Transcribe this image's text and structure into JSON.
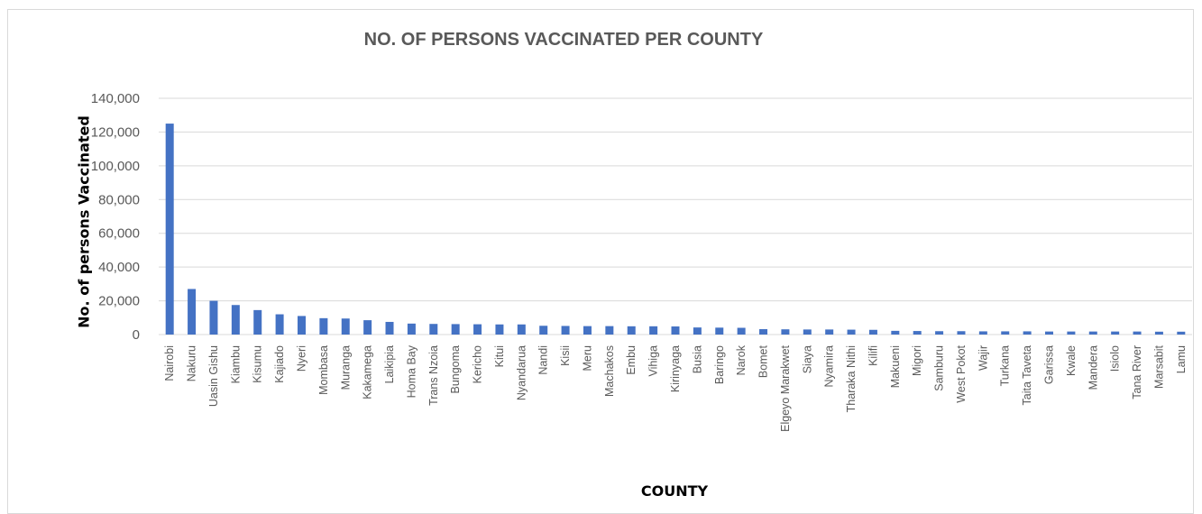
{
  "chart_data": {
    "type": "bar",
    "title": "NO. OF PERSONS VACCINATED PER COUNTY",
    "xlabel": "COUNTY",
    "ylabel": "No. of persons Vaccinated",
    "ylim": [
      0,
      140000
    ],
    "yticks": [
      "0",
      "20,000",
      "40,000",
      "60,000",
      "80,000",
      "100,000",
      "120,000",
      "140,000"
    ],
    "grid": true,
    "bar_color": "#4472c4",
    "categories": [
      "Nairobi",
      "Nakuru",
      "Uasin Gishu",
      "Kiambu",
      "Kisumu",
      "Kajiado",
      "Nyeri",
      "Mombasa",
      "Muranga",
      "Kakamega",
      "Laikipia",
      "Homa Bay",
      "Trans Nzoia",
      "Bungoma",
      "Kericho",
      "Kitui",
      "Nyandarua",
      "Nandi",
      "Kisii",
      "Meru",
      "Machakos",
      "Embu",
      "Vihiga",
      "Kirinyaga",
      "Busia",
      "Baringo",
      "Narok",
      "Bomet",
      "Elgeyo Marakwet",
      "Siaya",
      "Nyamira",
      "Tharaka Nithi",
      "Kilifi",
      "Makueni",
      "Migori",
      "Samburu",
      "West Pokot",
      "Wajir",
      "Turkana",
      "Taita Taveta",
      "Garissa",
      "Kwale",
      "Mandera",
      "Isiolo",
      "Tana River",
      "Marsabit",
      "Lamu"
    ],
    "values": [
      125000,
      27000,
      20000,
      17500,
      14500,
      12000,
      11000,
      9700,
      9500,
      8500,
      7500,
      6500,
      6300,
      6200,
      6100,
      6000,
      6000,
      5200,
      5100,
      5000,
      5000,
      4900,
      4900,
      4800,
      4200,
      4100,
      4000,
      3200,
      3100,
      3000,
      3000,
      2900,
      2800,
      2200,
      2100,
      2000,
      2000,
      1900,
      1900,
      1900,
      1800,
      1800,
      1800,
      1800,
      1800,
      1700,
      1700
    ]
  }
}
